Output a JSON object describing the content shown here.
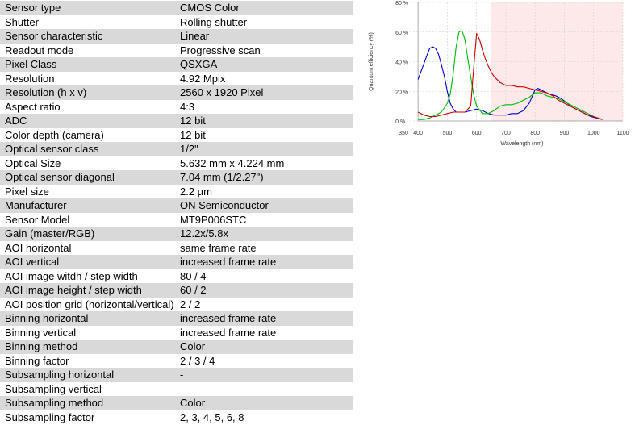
{
  "specs": [
    {
      "label": "Sensor type",
      "value": "CMOS Color"
    },
    {
      "label": "Shutter",
      "value": "Rolling shutter"
    },
    {
      "label": "Sensor characteristic",
      "value": "Linear"
    },
    {
      "label": "Readout mode",
      "value": "Progressive scan"
    },
    {
      "label": "Pixel Class",
      "value": "QSXGA"
    },
    {
      "label": "Resolution",
      "value": "4.92 Mpix"
    },
    {
      "label": "Resolution (h x v)",
      "value": "2560 x 1920 Pixel"
    },
    {
      "label": "Aspect ratio",
      "value": "4:3"
    },
    {
      "label": "ADC",
      "value": "12 bit"
    },
    {
      "label": "Color depth (camera)",
      "value": "12 bit"
    },
    {
      "label": "Optical sensor class",
      "value": "1/2\""
    },
    {
      "label": "Optical Size",
      "value": "5.632 mm x 4.224 mm"
    },
    {
      "label": "Optical sensor diagonal",
      "value": "7.04 mm (1/2.27\")"
    },
    {
      "label": "Pixel size",
      "value": "2.2 µm"
    },
    {
      "label": "Manufacturer",
      "value": "ON Semiconductor"
    },
    {
      "label": "Sensor Model",
      "value": "MT9P006STC"
    },
    {
      "label": "Gain (master/RGB)",
      "value": "12.2x/5.8x"
    },
    {
      "label": "AOI horizontal",
      "value": "same frame rate"
    },
    {
      "label": "AOI vertical",
      "value": "increased frame rate"
    },
    {
      "label": "AOI image witdh / step width",
      "value": "80 / 4"
    },
    {
      "label": "AOI image height / step width",
      "value": "60 / 2"
    },
    {
      "label": "AOI position grid (horizontal/vertical)",
      "value": "2 / 2"
    },
    {
      "label": "Binning horizontal",
      "value": "increased frame rate"
    },
    {
      "label": "Binning vertical",
      "value": "increased frame rate"
    },
    {
      "label": "Binning method",
      "value": "Color"
    },
    {
      "label": "Binning factor",
      "value": "2 / 3 / 4"
    },
    {
      "label": "Subsampling horizontal",
      "value": "-"
    },
    {
      "label": "Subsampling vertical",
      "value": "-"
    },
    {
      "label": "Subsampling method",
      "value": "Color"
    },
    {
      "label": "Subsampling factor",
      "value": "2, 3, 4, 5, 6, 8"
    }
  ],
  "chart_data": {
    "type": "line",
    "title": "",
    "xlabel": "Wavelength (nm)",
    "ylabel": "Quantum efficiency (%)",
    "xlim": [
      350,
      1100
    ],
    "ylim": [
      0,
      80
    ],
    "xticks": [
      350,
      400,
      500,
      600,
      700,
      800,
      900,
      1000,
      1100
    ],
    "xtick_labels": [
      "350",
      "400",
      "500",
      "600",
      "700",
      "800",
      "900",
      "1000",
      "1100"
    ],
    "yticks": [
      0,
      20,
      40,
      60,
      80
    ],
    "ytick_labels": [
      "0 %",
      "20 %",
      "40 %",
      "60 %",
      "80 %"
    ],
    "grid": true,
    "shaded_region": {
      "x_from": 650,
      "x_to": 1100,
      "color": "#fde9ea"
    },
    "series": [
      {
        "color": "#0000cc",
        "x": [
          400,
          415,
          430,
          440,
          450,
          460,
          470,
          480,
          490,
          500,
          510,
          520,
          530,
          540,
          560,
          580,
          600,
          620,
          640,
          660,
          680,
          700,
          720,
          740,
          760,
          780,
          800,
          810,
          820,
          830,
          850,
          870,
          890,
          910,
          930,
          950,
          970,
          990,
          1010,
          1030
        ],
        "y": [
          28,
          36,
          44,
          49,
          50,
          49,
          45,
          38,
          30,
          20,
          12,
          8,
          6,
          6,
          6,
          7,
          8,
          7,
          5,
          4,
          4,
          4,
          5,
          5,
          7,
          12,
          21,
          22,
          21,
          20,
          18,
          17,
          15,
          12,
          9,
          7,
          5,
          3,
          2,
          1
        ]
      },
      {
        "color": "#00bb00",
        "x": [
          400,
          420,
          440,
          460,
          480,
          500,
          510,
          520,
          530,
          540,
          550,
          560,
          570,
          580,
          590,
          600,
          620,
          640,
          660,
          680,
          700,
          720,
          740,
          760,
          780,
          800,
          820,
          840,
          860,
          880,
          900,
          920,
          940,
          960,
          980,
          1000,
          1030
        ],
        "y": [
          1,
          1,
          2,
          4,
          6,
          12,
          18,
          32,
          50,
          60,
          61,
          55,
          42,
          30,
          18,
          10,
          5,
          5,
          7,
          10,
          11,
          11,
          12,
          14,
          16,
          19,
          19,
          17,
          16,
          15,
          13,
          11,
          9,
          7,
          5,
          3,
          1
        ]
      },
      {
        "color": "#cc0000",
        "x": [
          400,
          420,
          440,
          460,
          480,
          500,
          520,
          540,
          560,
          580,
          590,
          600,
          610,
          620,
          630,
          640,
          650,
          660,
          680,
          700,
          720,
          740,
          760,
          780,
          800,
          820,
          840,
          860,
          880,
          900,
          920,
          940,
          960,
          980,
          1000,
          1030
        ],
        "y": [
          6,
          4,
          3,
          3,
          4,
          5,
          6,
          6,
          6,
          10,
          35,
          59,
          55,
          48,
          42,
          37,
          33,
          30,
          26,
          24,
          24,
          23,
          23,
          22,
          21,
          20,
          19,
          17,
          14,
          12,
          10,
          8,
          6,
          4,
          3,
          1
        ]
      }
    ]
  }
}
